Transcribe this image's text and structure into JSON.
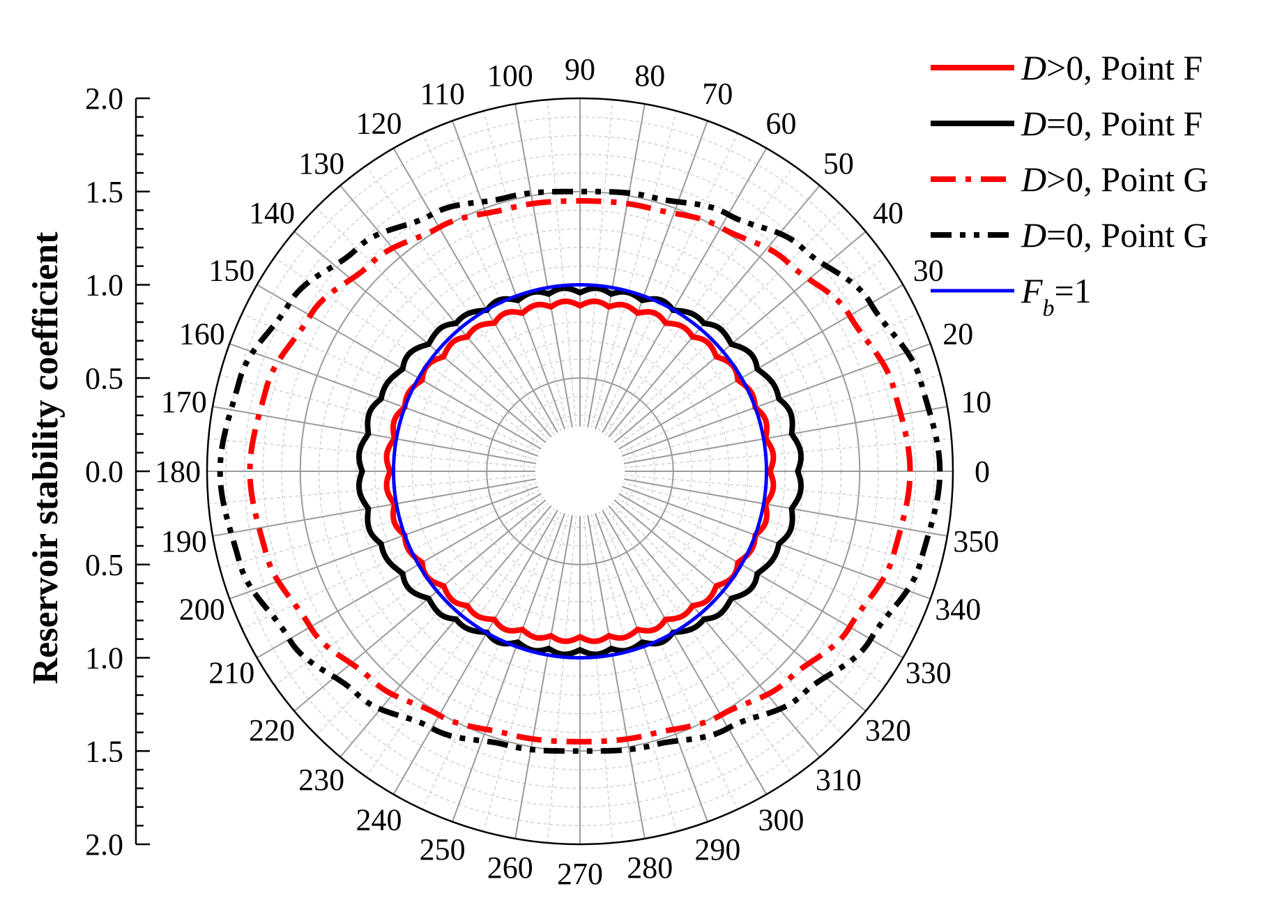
{
  "chart_data": {
    "type": "line",
    "projection": "polar",
    "ylabel": "Reservoir stability coefficient",
    "radial_axis": {
      "range": [
        0,
        2.0
      ],
      "tick_labels_top": [
        "2.0",
        "1.5",
        "1.0",
        "0.5",
        "0.0"
      ],
      "tick_labels_bottom": [
        "0.5",
        "1.0",
        "1.5",
        "2.0"
      ],
      "tick_values_top": [
        2.0,
        1.5,
        1.0,
        0.5,
        0.0
      ],
      "tick_values_bottom": [
        0.5,
        1.0,
        1.5,
        2.0
      ]
    },
    "angular_axis": {
      "unit": "degrees",
      "ticks": [
        0,
        10,
        20,
        30,
        40,
        50,
        60,
        70,
        80,
        90,
        100,
        110,
        120,
        130,
        140,
        150,
        160,
        170,
        180,
        190,
        200,
        210,
        220,
        230,
        240,
        250,
        260,
        270,
        280,
        290,
        300,
        310,
        320,
        330,
        340,
        350
      ],
      "tick_labels": [
        "0",
        "10",
        "20",
        "30",
        "40",
        "50",
        "60",
        "70",
        "80",
        "90",
        "100",
        "110",
        "120",
        "130",
        "140",
        "150",
        "160",
        "170",
        "180",
        "190",
        "200",
        "210",
        "220",
        "230",
        "240",
        "250",
        "260",
        "270",
        "280",
        "290",
        "300",
        "310",
        "320",
        "330",
        "340",
        "350"
      ]
    },
    "grid": true,
    "legend_position": "top-right",
    "series": [
      {
        "label_parts": [
          "D",
          ">0, Point F"
        ],
        "color": "#ff0000",
        "style": "solid",
        "angles": [
          0,
          15,
          30,
          45,
          60,
          75,
          90,
          105,
          120,
          135,
          150,
          165,
          180,
          195,
          210,
          225,
          240,
          255,
          270,
          285,
          300,
          315,
          330,
          345,
          360
        ],
        "values": [
          1.03,
          1.02,
          0.99,
          0.96,
          0.93,
          0.91,
          0.9,
          0.91,
          0.93,
          0.96,
          0.99,
          1.02,
          1.03,
          1.02,
          0.99,
          0.96,
          0.93,
          0.91,
          0.9,
          0.91,
          0.93,
          0.96,
          0.99,
          1.02,
          1.03
        ],
        "ripples": 36,
        "ripple_amplitude": 0.025
      },
      {
        "label_parts": [
          "D",
          "=0, Point F"
        ],
        "color": "#000000",
        "style": "solid",
        "angles": [
          0,
          15,
          30,
          45,
          60,
          75,
          90,
          105,
          120,
          135,
          150,
          165,
          180,
          195,
          210,
          225,
          240,
          255,
          270,
          285,
          300,
          315,
          330,
          345,
          360
        ],
        "values": [
          1.18,
          1.16,
          1.11,
          1.06,
          1.01,
          0.98,
          0.97,
          0.98,
          1.01,
          1.06,
          1.11,
          1.16,
          1.18,
          1.16,
          1.11,
          1.06,
          1.01,
          0.98,
          0.97,
          0.98,
          1.01,
          1.06,
          1.11,
          1.16,
          1.18
        ],
        "ripples": 36,
        "ripple_amplitude": 0.025
      },
      {
        "label_parts": [
          "D",
          ">0, Point G"
        ],
        "color": "#ff0000",
        "style": "dash-dot",
        "angles": [
          0,
          15,
          30,
          45,
          60,
          75,
          90,
          105,
          120,
          135,
          150,
          165,
          180,
          195,
          210,
          225,
          240,
          255,
          270,
          285,
          300,
          315,
          330,
          345,
          360
        ],
        "values": [
          1.77,
          1.74,
          1.67,
          1.58,
          1.51,
          1.46,
          1.45,
          1.46,
          1.51,
          1.58,
          1.67,
          1.74,
          1.77,
          1.74,
          1.67,
          1.58,
          1.51,
          1.46,
          1.45,
          1.46,
          1.51,
          1.58,
          1.67,
          1.74,
          1.77
        ]
      },
      {
        "label_parts": [
          "D",
          "=0, Point G"
        ],
        "color": "#000000",
        "style": "dash-dot-dot",
        "angles": [
          0,
          15,
          30,
          45,
          60,
          75,
          90,
          105,
          120,
          135,
          150,
          165,
          180,
          195,
          210,
          225,
          240,
          255,
          270,
          285,
          300,
          315,
          330,
          345,
          360
        ],
        "values": [
          1.93,
          1.89,
          1.8,
          1.69,
          1.59,
          1.52,
          1.5,
          1.52,
          1.59,
          1.69,
          1.8,
          1.89,
          1.93,
          1.89,
          1.8,
          1.69,
          1.59,
          1.52,
          1.5,
          1.52,
          1.59,
          1.69,
          1.8,
          1.89,
          1.93
        ]
      },
      {
        "label_parts": [
          "F",
          "b",
          "=1"
        ],
        "color": "#0000ff",
        "style": "solid",
        "angles": [
          0,
          90,
          180,
          270,
          360
        ],
        "values": [
          1.0,
          1.0,
          1.0,
          1.0,
          1.0
        ]
      }
    ]
  }
}
